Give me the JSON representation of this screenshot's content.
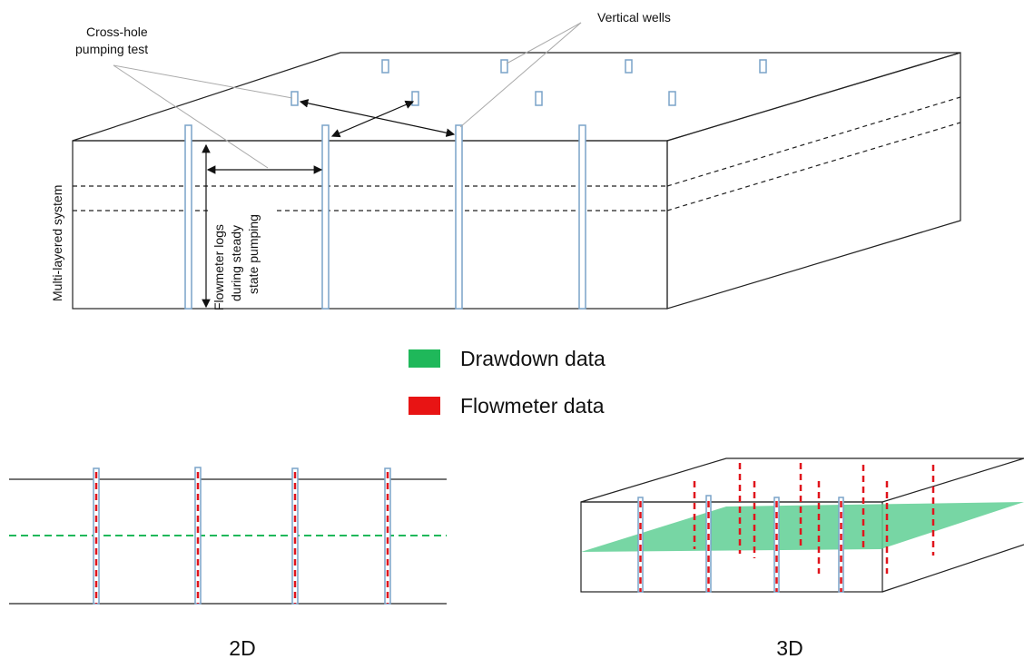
{
  "labels": {
    "cross_hole": [
      "Cross-hole",
      "pumping test"
    ],
    "vertical_wells": "Vertical wells",
    "multi_layered": "Multi-layered system",
    "flowmeter_logs": [
      "Flowmeter logs",
      "during steady",
      "state pumping"
    ]
  },
  "legend": {
    "drawdown": "Drawdown data",
    "flowmeter": "Flowmeter data"
  },
  "panels": {
    "two_d": "2D",
    "three_d": "3D"
  }
}
